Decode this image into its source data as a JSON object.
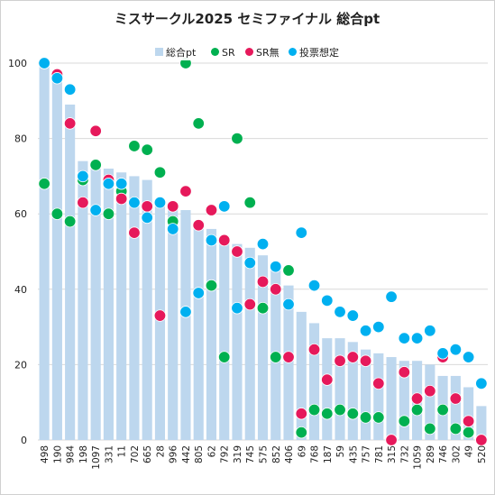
{
  "chart_data": {
    "type": "bar",
    "title": "ミスサークル2025 セミファイナル 総合pt",
    "xlabel": "",
    "ylabel": "",
    "ylim": [
      0,
      100
    ],
    "yticks": [
      "0",
      "20",
      "40",
      "60",
      "80",
      "100"
    ],
    "grid": true,
    "legend_position": "top",
    "categories": [
      "498",
      "190",
      "984",
      "198",
      "1097",
      "331",
      "11",
      "702",
      "665",
      "28",
      "996",
      "442",
      "805",
      "62",
      "792",
      "319",
      "745",
      "575",
      "852",
      "406",
      "69",
      "768",
      "187",
      "59",
      "435",
      "757",
      "781",
      "315",
      "732",
      "1059",
      "289",
      "746",
      "302",
      "49",
      "520"
    ],
    "series": [
      {
        "name": "総合pt",
        "kind": "bar",
        "color": "#bdd7ee",
        "values": [
          100,
          97,
          89,
          74,
          72,
          72,
          71,
          70,
          69,
          63,
          62,
          61,
          58,
          56,
          54,
          52,
          51,
          49,
          46,
          41,
          34,
          31,
          27,
          27,
          26,
          24,
          23,
          22,
          21,
          21,
          20,
          17,
          17,
          14,
          9
        ]
      },
      {
        "name": "SR",
        "kind": "point",
        "color": "#00b050",
        "values": [
          68,
          60,
          58,
          69,
          73,
          60,
          66,
          78,
          77,
          71,
          58,
          100,
          84,
          41,
          22,
          80,
          63,
          35,
          22,
          45,
          2,
          8,
          7,
          8,
          7,
          6,
          6,
          0,
          5,
          8,
          3,
          8,
          3,
          2,
          0
        ]
      },
      {
        "name": "SR無",
        "kind": "point",
        "color": "#e6195b",
        "values": [
          100,
          97,
          84,
          63,
          82,
          69,
          64,
          55,
          62,
          33,
          62,
          66,
          57,
          61,
          53,
          50,
          36,
          42,
          40,
          22,
          7,
          24,
          16,
          21,
          22,
          21,
          15,
          0,
          18,
          11,
          13,
          22,
          11,
          5,
          0
        ]
      },
      {
        "name": "投票想定",
        "kind": "point",
        "color": "#00b0f0",
        "values": [
          100,
          96,
          93,
          70,
          61,
          68,
          68,
          63,
          59,
          63,
          56,
          34,
          39,
          53,
          62,
          35,
          47,
          52,
          46,
          36,
          55,
          41,
          37,
          34,
          33,
          29,
          30,
          38,
          27,
          27,
          29,
          23,
          24,
          22,
          15
        ]
      }
    ]
  }
}
